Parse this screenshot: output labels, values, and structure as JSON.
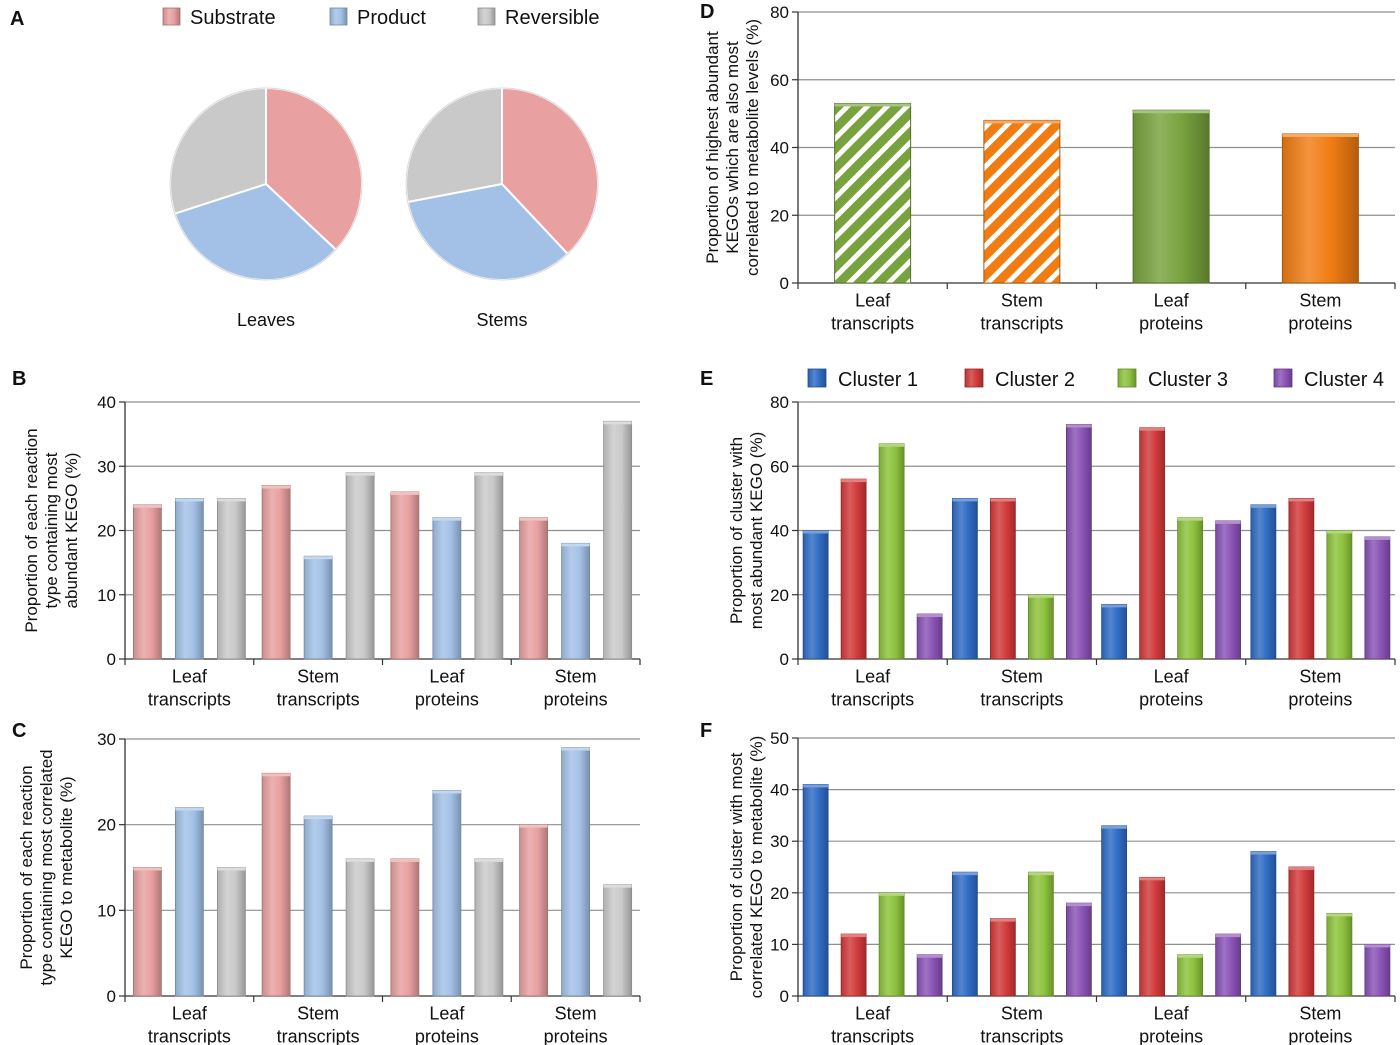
{
  "colors": {
    "substrate": "#e8a0a0",
    "product": "#a3c1e6",
    "reversible": "#c9c9c9",
    "cluster1": "#2f6cc4",
    "cluster2": "#d23a3a",
    "cluster3": "#8dc23c",
    "cluster4": "#8a53b6",
    "leaf_green": "#77a23d",
    "stem_orange": "#f07c12",
    "grid": "#8f8f8f"
  },
  "chart_data": [
    {
      "id": "A",
      "panel_label": "A",
      "type": "pie",
      "legend": [
        "Substrate",
        "Product",
        "Reversible"
      ],
      "pies": [
        {
          "name": "Leaves",
          "values": [
            37,
            33,
            30
          ]
        },
        {
          "name": "Stems",
          "values": [
            38,
            34,
            28
          ]
        }
      ]
    },
    {
      "id": "B",
      "panel_label": "B",
      "type": "bar",
      "categories": [
        "Leaf\ntranscripts",
        "Stem\ntranscripts",
        "Leaf\nproteins",
        "Stem\nproteins"
      ],
      "series": [
        {
          "name": "Substrate",
          "values": [
            24,
            27,
            26,
            22
          ]
        },
        {
          "name": "Product",
          "values": [
            25,
            16,
            22,
            18
          ]
        },
        {
          "name": "Reversible",
          "values": [
            25,
            29,
            29,
            37
          ]
        }
      ],
      "ylim": [
        0,
        40
      ],
      "yticks": [
        0,
        10,
        20,
        30,
        40
      ],
      "ylabel": "Proportion of each reaction\ntype containing most\nabundant KEGO (%)"
    },
    {
      "id": "C",
      "panel_label": "C",
      "type": "bar",
      "categories": [
        "Leaf\ntranscripts",
        "Stem\ntranscripts",
        "Leaf\nproteins",
        "Stem\nproteins"
      ],
      "series": [
        {
          "name": "Substrate",
          "values": [
            15,
            26,
            16,
            20
          ]
        },
        {
          "name": "Product",
          "values": [
            22,
            21,
            24,
            29
          ]
        },
        {
          "name": "Reversible",
          "values": [
            15,
            16,
            16,
            13
          ]
        }
      ],
      "ylim": [
        0,
        30
      ],
      "yticks": [
        0,
        10,
        20,
        30
      ],
      "ylabel": "Proportion of each reaction\ntype containing most correlated\nKEGO to metabolite (%)"
    },
    {
      "id": "D",
      "panel_label": "D",
      "type": "bar",
      "categories": [
        "Leaf\ntranscripts",
        "Stem\ntranscripts",
        "Leaf\nproteins",
        "Stem\nproteins"
      ],
      "values": [
        53,
        48,
        51,
        44
      ],
      "bar_styles": [
        "green-hatched",
        "orange-hatched",
        "green",
        "orange"
      ],
      "ylim": [
        0,
        80
      ],
      "yticks": [
        0,
        20,
        40,
        60,
        80
      ],
      "ylabel": "Proportion of highest abundant\nKEGOs which are also most\ncorrelated to metabolite levels (%)"
    },
    {
      "id": "E",
      "panel_label": "E",
      "type": "bar",
      "legend": [
        "Cluster 1",
        "Cluster 2",
        "Cluster 3",
        "Cluster 4"
      ],
      "categories": [
        "Leaf\ntranscripts",
        "Stem\ntranscripts",
        "Leaf\nproteins",
        "Stem\nproteins"
      ],
      "series": [
        {
          "name": "Cluster 1",
          "values": [
            40,
            50,
            17,
            48
          ]
        },
        {
          "name": "Cluster 2",
          "values": [
            56,
            50,
            72,
            50
          ]
        },
        {
          "name": "Cluster 3",
          "values": [
            67,
            20,
            44,
            40
          ]
        },
        {
          "name": "Cluster 4",
          "values": [
            14,
            73,
            43,
            38
          ]
        }
      ],
      "ylim": [
        0,
        80
      ],
      "yticks": [
        0,
        20,
        40,
        60,
        80
      ],
      "ylabel": "Proportion of cluster with\nmost abundant KEGO (%)"
    },
    {
      "id": "F",
      "panel_label": "F",
      "type": "bar",
      "categories": [
        "Leaf\ntranscripts",
        "Stem\ntranscripts",
        "Leaf\nproteins",
        "Stem\nproteins"
      ],
      "series": [
        {
          "name": "Cluster 1",
          "values": [
            41,
            24,
            33,
            28
          ]
        },
        {
          "name": "Cluster 2",
          "values": [
            12,
            15,
            23,
            25
          ]
        },
        {
          "name": "Cluster 3",
          "values": [
            20,
            24,
            8,
            16
          ]
        },
        {
          "name": "Cluster 4",
          "values": [
            8,
            18,
            12,
            10
          ]
        }
      ],
      "ylim": [
        0,
        50
      ],
      "yticks": [
        0,
        10,
        20,
        30,
        40,
        50
      ],
      "ylabel": "Proportion of cluster with most\ncorrelated KEGO to metabolite (%)"
    }
  ]
}
